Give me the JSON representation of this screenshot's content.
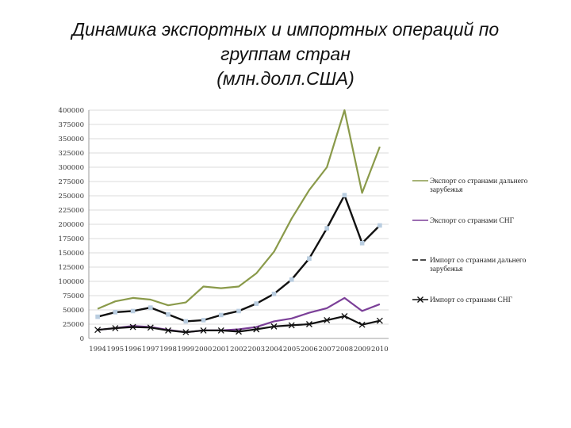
{
  "chart_data": {
    "type": "line",
    "title": "Динамика экспортных и импортных операций по группам стран",
    "title_lines": [
      "Динамика экспортных и импортных операций по",
      "группам стран"
    ],
    "subtitle": "(млн.долл.США)",
    "x": [
      "1994",
      "1995",
      "1996",
      "1997",
      "1998",
      "1999",
      "2000",
      "2001",
      "2002",
      "2003",
      "2004",
      "2005",
      "2006",
      "2007",
      "2008",
      "2009",
      "2010"
    ],
    "yticks": [
      "0",
      "25000",
      "50000",
      "75000",
      "100000",
      "125000",
      "150000",
      "175000",
      "200000",
      "225000",
      "250000",
      "275000",
      "300000",
      "325000",
      "350000",
      "375000",
      "400000"
    ],
    "ylim": [
      0,
      400000
    ],
    "grid": "horizontal",
    "legend_position": "right",
    "series": [
      {
        "name": "Экспорт со странами дальнего зарубежья",
        "legend_lines": [
          "Экспорт со странами дальнего",
          "зарубежья"
        ],
        "color": "#8a9a4a",
        "marker": "none",
        "dash": "solid",
        "values": [
          52000,
          65000,
          71000,
          68000,
          58000,
          63000,
          91000,
          88000,
          91000,
          114000,
          152000,
          210000,
          260000,
          300000,
          400000,
          255000,
          336000
        ]
      },
      {
        "name": "Экспорт со странами СНГ",
        "legend_lines": [
          "Экспорт со странами СНГ"
        ],
        "color": "#7b3f98",
        "marker": "none",
        "dash": "solid",
        "values": [
          15000,
          18000,
          22000,
          20000,
          15000,
          11000,
          14000,
          14000,
          16000,
          20000,
          30000,
          35000,
          45000,
          53000,
          71000,
          48000,
          60000
        ]
      },
      {
        "name": "Импорт со странами дальнего зарубежья",
        "legend_lines": [
          "Импорт со странами дальнего",
          "зарубежья"
        ],
        "color": "#111111",
        "marker": "square",
        "marker_color": "#b9cde0",
        "dash": "long-dash",
        "values": [
          38000,
          46000,
          48000,
          54000,
          42000,
          30000,
          32000,
          41000,
          48000,
          61000,
          78000,
          103000,
          140000,
          193000,
          251000,
          167000,
          198000
        ]
      },
      {
        "name": "Импорт со странами СНГ",
        "legend_lines": [
          "Импорт со странами СНГ"
        ],
        "color": "#111111",
        "marker": "x",
        "dash": "solid",
        "values": [
          15000,
          18000,
          20000,
          19000,
          14000,
          11000,
          14000,
          14000,
          12000,
          16000,
          21000,
          23000,
          25000,
          32000,
          39000,
          24000,
          31000
        ]
      }
    ]
  }
}
